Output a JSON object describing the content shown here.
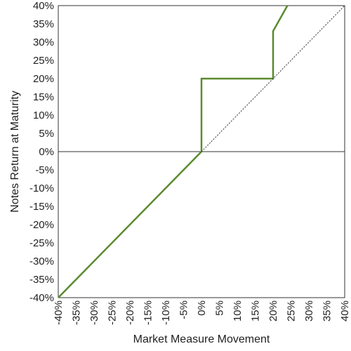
{
  "chart_data": {
    "type": "line",
    "title": "",
    "xlabel": "Market Measure Movement",
    "ylabel": "Notes Return at Maturity",
    "xlim": [
      -40,
      40
    ],
    "ylim": [
      -40,
      40
    ],
    "x_ticks": [
      "-40%",
      "-35%",
      "-30%",
      "-25%",
      "-20%",
      "-15%",
      "-10%",
      "-5%",
      "0%",
      "5%",
      "10%",
      "15%",
      "20%",
      "25%",
      "30%",
      "35%",
      "40%"
    ],
    "y_ticks": [
      "40%",
      "35%",
      "30%",
      "25%",
      "20%",
      "15%",
      "10%",
      "5%",
      "0%",
      "-5%",
      "-10%",
      "-15%",
      "-20%",
      "-25%",
      "-30%",
      "-35%",
      "-40%"
    ],
    "series": [
      {
        "style": "solid",
        "color": "#5a8a2e",
        "points": [
          [
            -40,
            -40
          ],
          [
            0,
            0
          ],
          [
            0,
            20
          ],
          [
            20,
            20
          ],
          [
            20,
            33
          ],
          [
            24,
            40
          ]
        ]
      },
      {
        "style": "dotted",
        "color": "#333333",
        "points": [
          [
            0,
            0
          ],
          [
            40,
            40
          ]
        ]
      }
    ],
    "zero_line": true,
    "grid": false,
    "legend": "none"
  }
}
